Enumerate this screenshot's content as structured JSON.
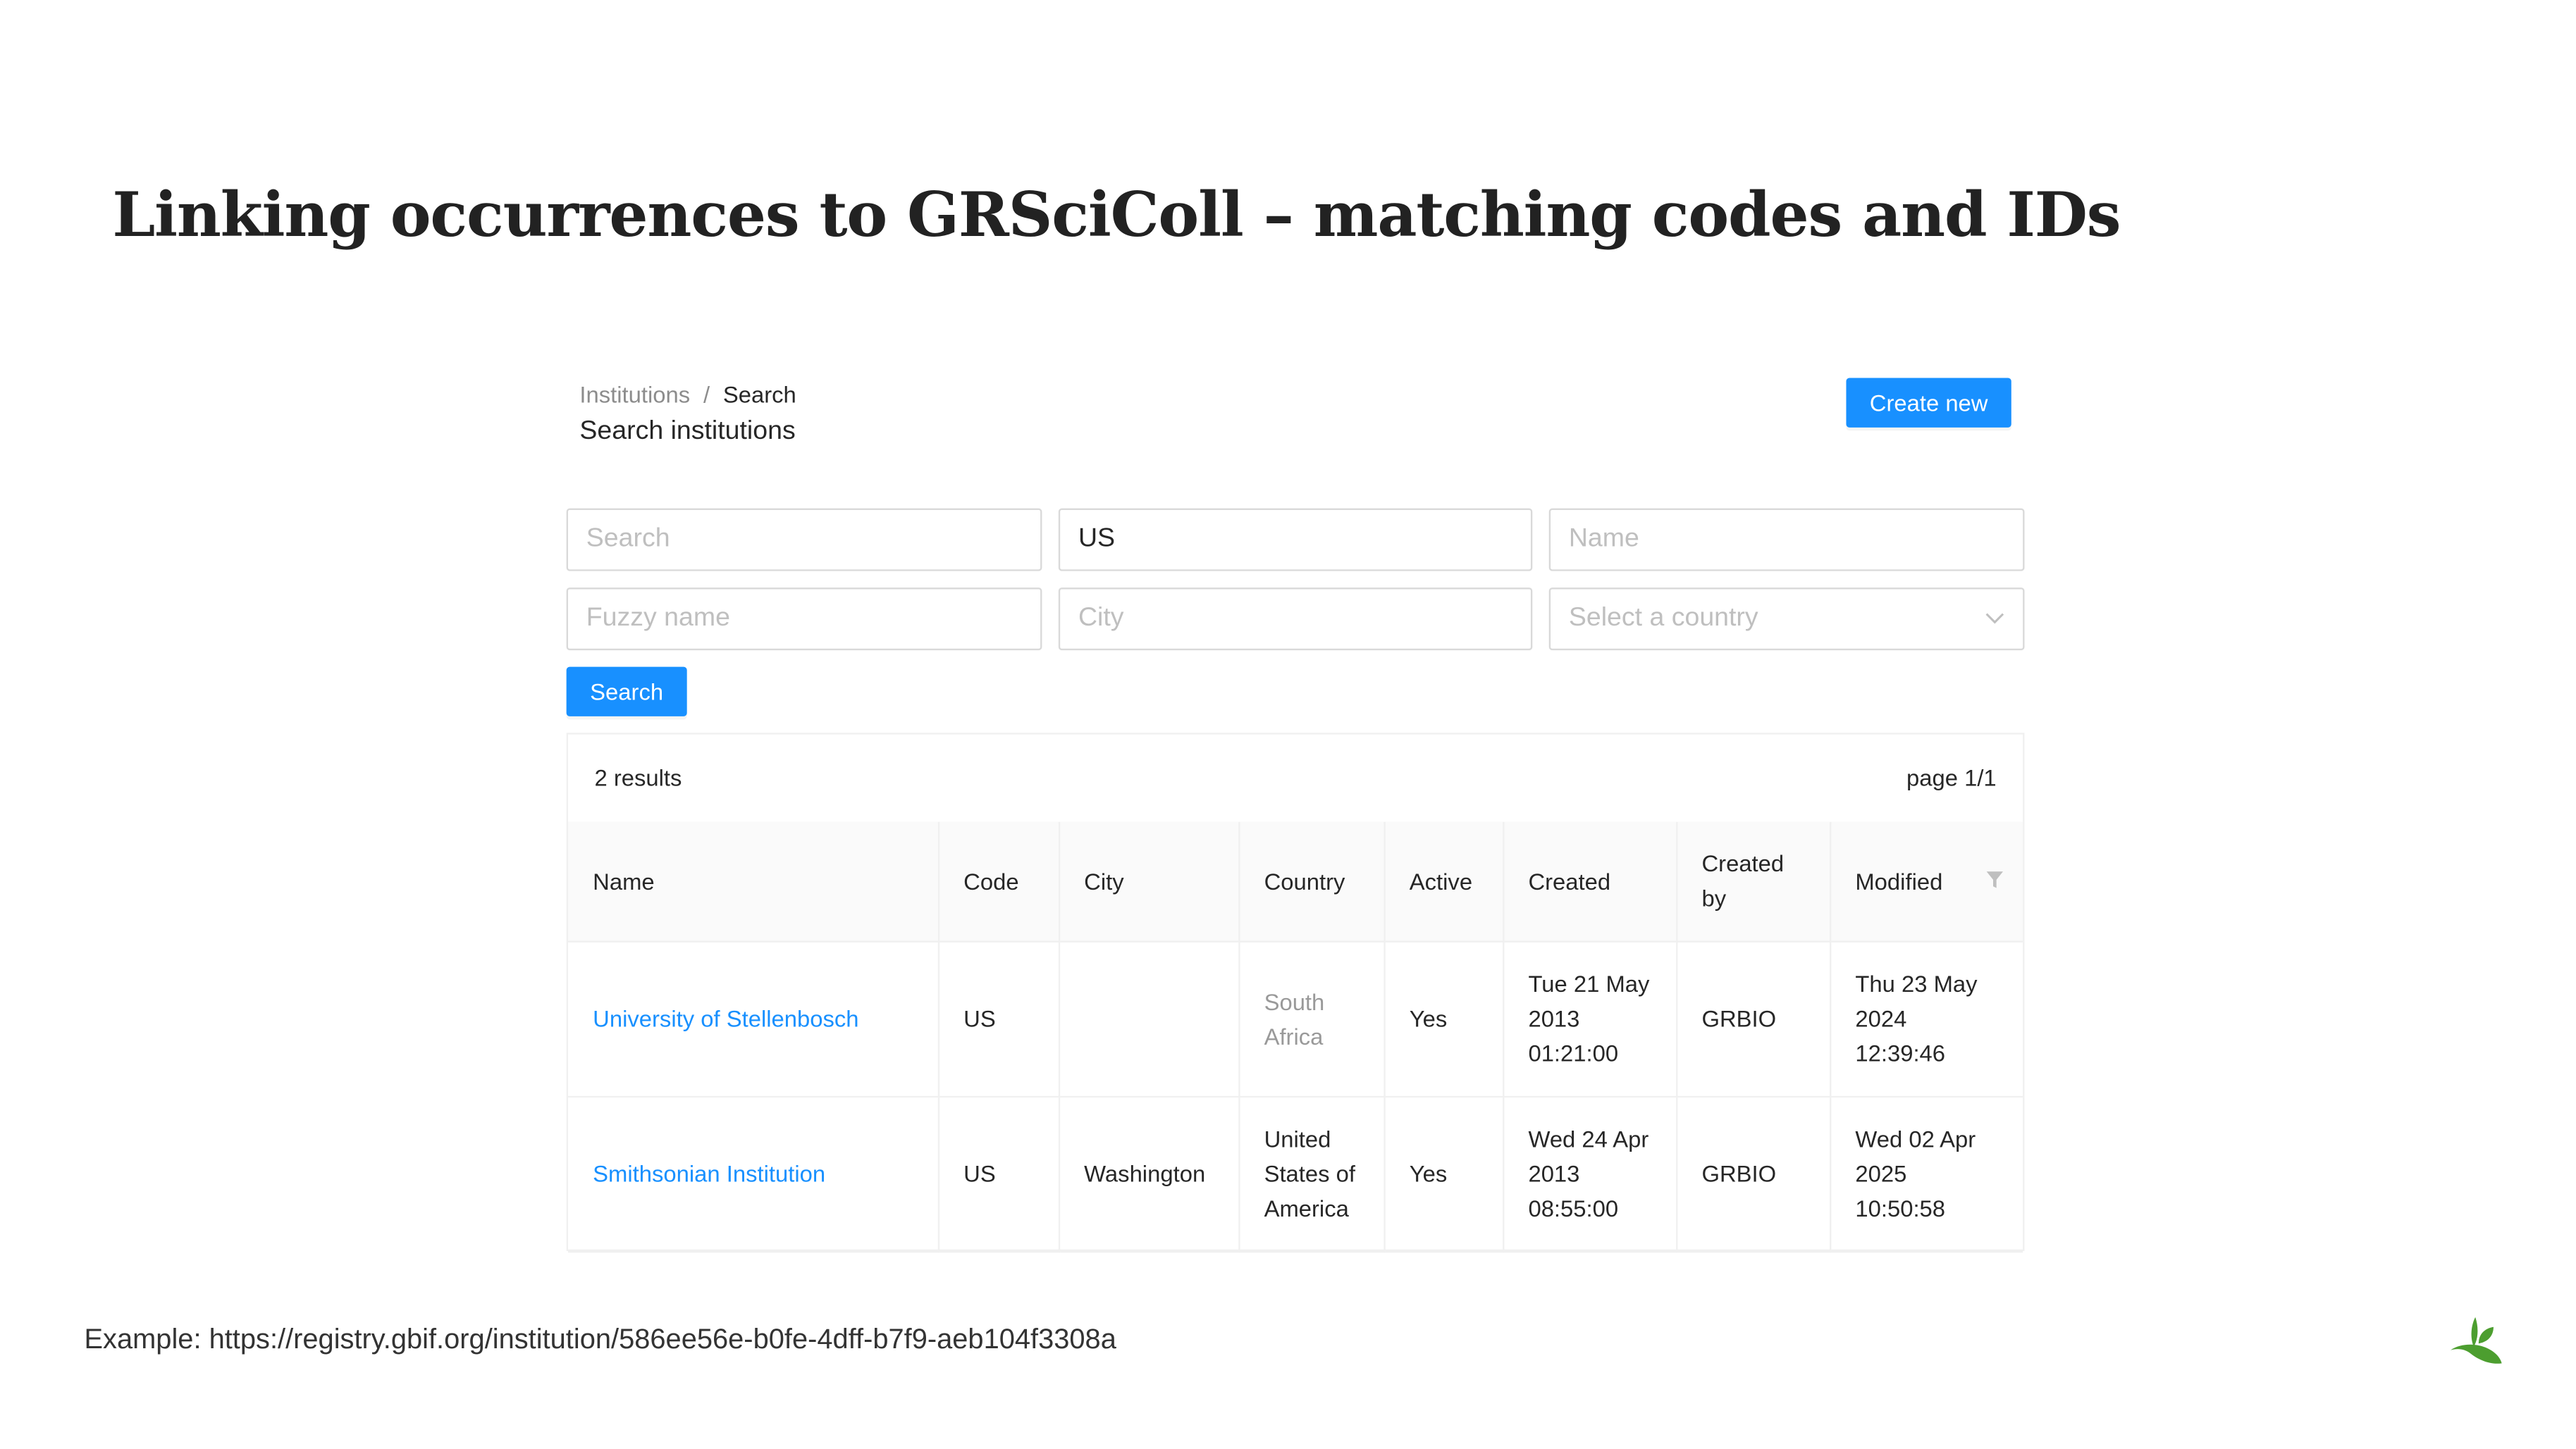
{
  "slide_title": "Linking occurrences to GRSciColl – matching codes and IDs",
  "breadcrumb": [
    "Institutions",
    "Search"
  ],
  "page_title": "Search institutions",
  "create_button": "Create new",
  "filters": {
    "search_placeholder": "Search",
    "code_value": "US",
    "name_placeholder": "Name",
    "fuzzy_placeholder": "Fuzzy name",
    "city_placeholder": "City",
    "country_placeholder": "Select a country"
  },
  "search_button": "Search",
  "results": {
    "count": "2 results",
    "page": "page 1/1",
    "columns": [
      "Name",
      "Code",
      "City",
      "Country",
      "Active",
      "Created",
      "Created by",
      "Modified"
    ],
    "rows": [
      {
        "name": "University of Stellenbosch",
        "code": "US",
        "city": "",
        "country": "South Africa",
        "active": "Yes",
        "created": "Tue 21 May 2013 01:21:00",
        "created_by": "GRBIO",
        "modified": "Thu 23 May 2024 12:39:46"
      },
      {
        "name": "Smithsonian Institution",
        "code": "US",
        "city": "Washington",
        "country": "United States of America",
        "active": "Yes",
        "created": "Wed 24 Apr 2013 08:55:00",
        "created_by": "GRBIO",
        "modified": "Wed 02 Apr 2025 10:50:58"
      }
    ]
  },
  "footer": "Example: https://registry.gbif.org/institution/586ee56e-b0fe-4dff-b7f9-aeb104f3308a",
  "colors": {
    "primary": "#1890ff",
    "logo": "#4c9e2f"
  },
  "logo": "GBIF leaf logo"
}
